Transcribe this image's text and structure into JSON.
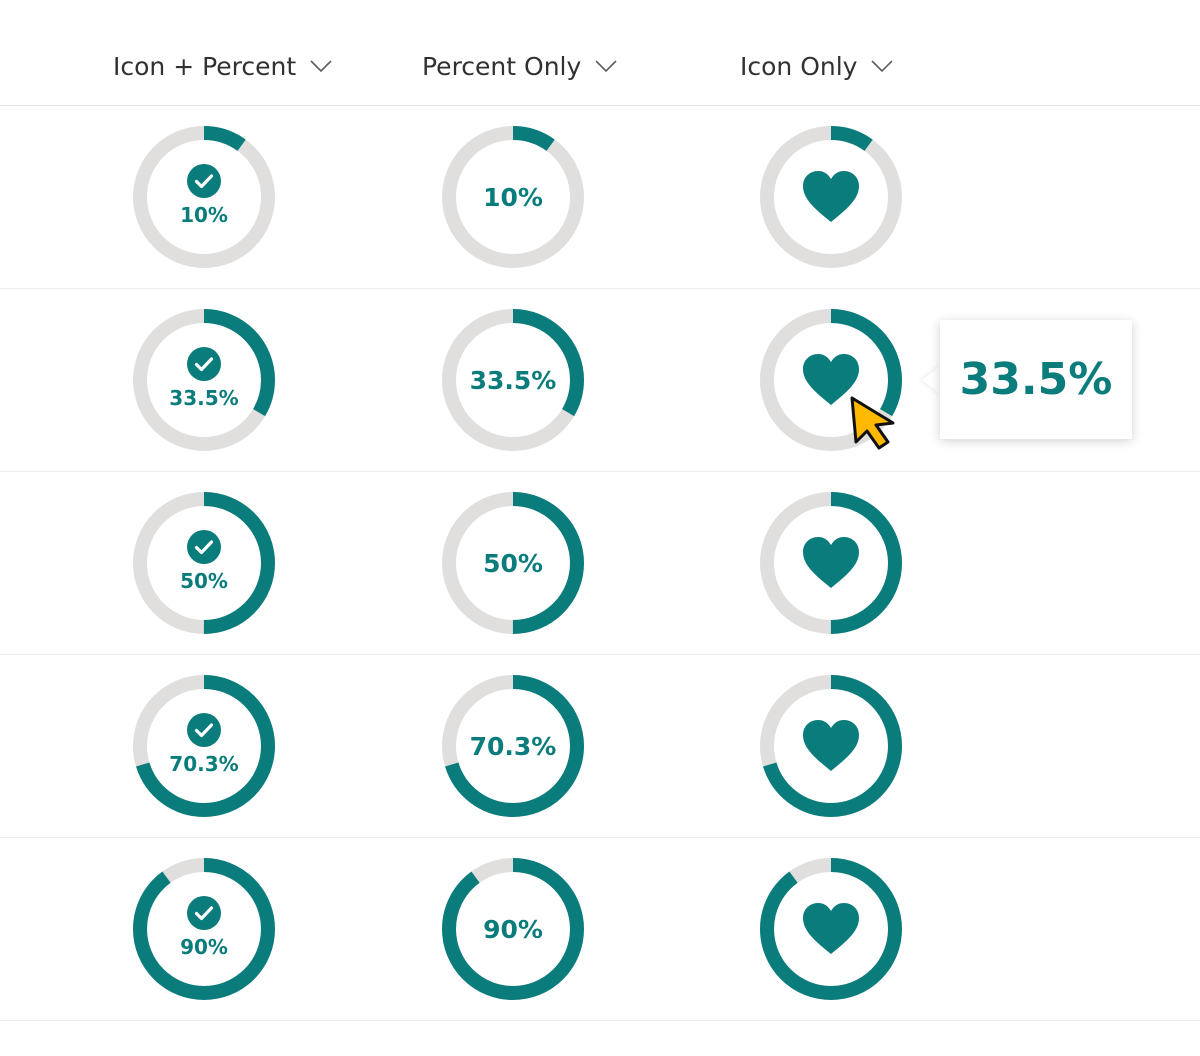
{
  "colors": {
    "accent": "#0a7c7b",
    "track": "#e1dfdd",
    "cursor": "#ffb900"
  },
  "columns": [
    {
      "label": "Icon + Percent",
      "display": "icon-percent"
    },
    {
      "label": "Percent Only",
      "display": "percent"
    },
    {
      "label": "Icon Only",
      "display": "icon"
    }
  ],
  "rows": [
    {
      "value": 10,
      "label": "10%"
    },
    {
      "value": 33.5,
      "label": "33.5%"
    },
    {
      "value": 50,
      "label": "50%"
    },
    {
      "value": 70.3,
      "label": "70.3%"
    },
    {
      "value": 90,
      "label": "90%"
    }
  ],
  "tooltip": {
    "text": "33.5%"
  },
  "icons": {
    "sort": "chevron-down-icon",
    "check": "check-circle-icon",
    "heart": "heart-icon",
    "cursor": "mouse-pointer-icon"
  }
}
